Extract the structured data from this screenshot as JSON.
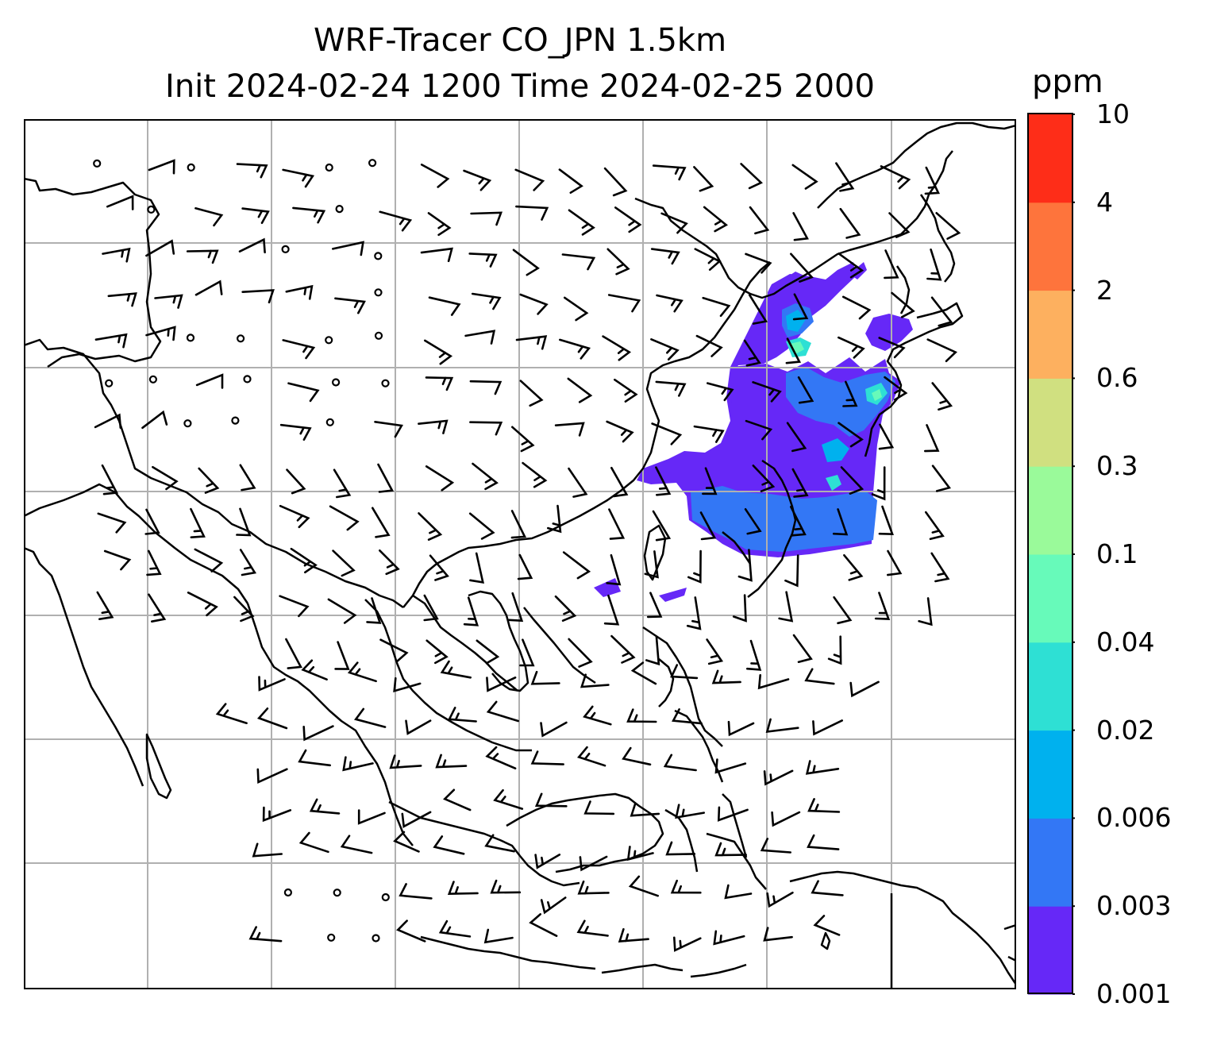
{
  "title_line1": "WRF-Tracer CO_JPN 1.5km",
  "title_line2": "Init 2024-02-24 1200 Time 2024-02-25 2000",
  "colorbar": {
    "unit": "ppm",
    "levels": [
      "0.001",
      "0.003",
      "0.006",
      "0.02",
      "0.04",
      "0.1",
      "0.3",
      "0.6",
      "2",
      "4",
      "10"
    ],
    "colors": [
      "#6628f7",
      "#3377f5",
      "#00b1ee",
      "#2ee0d4",
      "#67faba",
      "#9afa9a",
      "#d0e080",
      "#fdb05f",
      "#fe743c",
      "#fe2d18"
    ]
  },
  "map": {
    "coastline_color": "#000000",
    "gridline_color": "#b0b0b0",
    "background": "#ffffff"
  }
}
